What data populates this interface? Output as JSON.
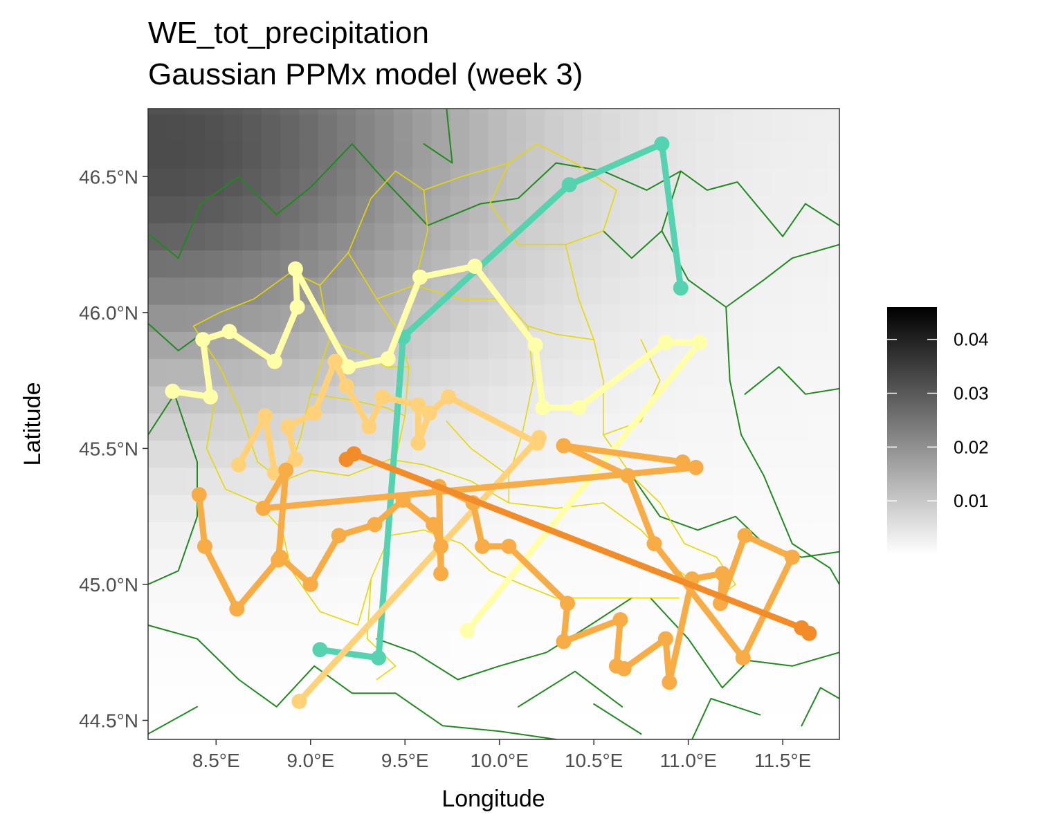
{
  "title": {
    "line1": "WE_tot_precipitation",
    "line2": "Gaussian PPMx model (week 3)"
  },
  "chart_data": {
    "type": "map",
    "xlabel": "Longitude",
    "ylabel": "Latitude",
    "xlim": [
      8.14,
      11.8
    ],
    "ylim": [
      44.43,
      46.75
    ],
    "x_ticks": [
      {
        "value": 8.5,
        "label": "8.5°E"
      },
      {
        "value": 9.0,
        "label": "9.0°E"
      },
      {
        "value": 9.5,
        "label": "9.5°E"
      },
      {
        "value": 10.0,
        "label": "10.0°E"
      },
      {
        "value": 10.5,
        "label": "10.5°E"
      },
      {
        "value": 11.0,
        "label": "11.0°E"
      },
      {
        "value": 11.5,
        "label": "11.5°E"
      }
    ],
    "y_ticks": [
      {
        "value": 44.5,
        "label": "44.5°N"
      },
      {
        "value": 45.0,
        "label": "45.0°N"
      },
      {
        "value": 45.5,
        "label": "45.5°N"
      },
      {
        "value": 46.0,
        "label": "46.0°N"
      },
      {
        "value": 46.5,
        "label": "46.5°N"
      }
    ],
    "grid": false,
    "legend": {
      "placement": "right",
      "gradient": [
        "#ffffff",
        "#000000"
      ],
      "min": 0.0,
      "max": 0.046,
      "ticks": [
        {
          "value": 0.01,
          "label": "0.01"
        },
        {
          "value": 0.02,
          "label": "0.02"
        },
        {
          "value": 0.03,
          "label": "0.03"
        },
        {
          "value": 0.04,
          "label": "0.04"
        }
      ]
    },
    "background_field": {
      "description_colors": [
        "#ffffff",
        "#000000"
      ],
      "peak": {
        "lon": 8.2,
        "lat": 46.6,
        "value": 0.03
      }
    },
    "boundary_colors": {
      "regions": "#1e8a1e",
      "provinces": "#e6d800"
    },
    "clusters": [
      {
        "color": "#55d3b0",
        "stations": [
          {
            "lon": 9.05,
            "lat": 44.76
          },
          {
            "lon": 9.36,
            "lat": 44.73
          },
          {
            "lon": 9.49,
            "lat": 45.91
          },
          {
            "lon": 10.37,
            "lat": 46.47
          },
          {
            "lon": 10.86,
            "lat": 46.62
          },
          {
            "lon": 10.96,
            "lat": 46.09
          }
        ]
      },
      {
        "color": "#ffffaa",
        "stations": [
          {
            "lon": 8.27,
            "lat": 45.71
          },
          {
            "lon": 8.47,
            "lat": 45.69
          },
          {
            "lon": 8.43,
            "lat": 45.9
          },
          {
            "lon": 8.57,
            "lat": 45.93
          },
          {
            "lon": 8.81,
            "lat": 45.82
          },
          {
            "lon": 8.93,
            "lat": 46.02
          },
          {
            "lon": 8.92,
            "lat": 46.16
          },
          {
            "lon": 9.2,
            "lat": 45.8
          },
          {
            "lon": 9.41,
            "lat": 45.83
          },
          {
            "lon": 9.58,
            "lat": 46.13
          },
          {
            "lon": 9.87,
            "lat": 46.17
          },
          {
            "lon": 10.19,
            "lat": 45.88
          },
          {
            "lon": 10.23,
            "lat": 45.65
          },
          {
            "lon": 10.42,
            "lat": 45.65
          },
          {
            "lon": 10.88,
            "lat": 45.89
          },
          {
            "lon": 11.06,
            "lat": 45.89
          },
          {
            "lon": 9.83,
            "lat": 44.83
          }
        ]
      },
      {
        "color": "#ffd27a",
        "stations": [
          {
            "lon": 8.62,
            "lat": 45.44
          },
          {
            "lon": 8.76,
            "lat": 45.62
          },
          {
            "lon": 8.81,
            "lat": 45.41
          },
          {
            "lon": 8.92,
            "lat": 45.46
          },
          {
            "lon": 8.88,
            "lat": 45.58
          },
          {
            "lon": 9.02,
            "lat": 45.63
          },
          {
            "lon": 9.13,
            "lat": 45.82
          },
          {
            "lon": 9.19,
            "lat": 45.73
          },
          {
            "lon": 9.31,
            "lat": 45.58
          },
          {
            "lon": 9.38,
            "lat": 45.69
          },
          {
            "lon": 9.57,
            "lat": 45.66
          },
          {
            "lon": 9.57,
            "lat": 45.52
          },
          {
            "lon": 9.63,
            "lat": 45.63
          },
          {
            "lon": 9.73,
            "lat": 45.69
          },
          {
            "lon": 10.2,
            "lat": 45.52
          },
          {
            "lon": 10.21,
            "lat": 45.54
          },
          {
            "lon": 8.94,
            "lat": 44.57
          }
        ]
      },
      {
        "color": "#f7ac45",
        "stations": [
          {
            "lon": 8.41,
            "lat": 45.33
          },
          {
            "lon": 8.44,
            "lat": 45.14
          },
          {
            "lon": 8.61,
            "lat": 44.91
          },
          {
            "lon": 8.84,
            "lat": 45.1
          },
          {
            "lon": 9.0,
            "lat": 45.0
          },
          {
            "lon": 9.15,
            "lat": 45.18
          },
          {
            "lon": 9.34,
            "lat": 45.22
          },
          {
            "lon": 9.49,
            "lat": 45.31
          },
          {
            "lon": 9.65,
            "lat": 45.22
          },
          {
            "lon": 9.69,
            "lat": 45.14
          },
          {
            "lon": 9.69,
            "lat": 45.04
          },
          {
            "lon": 9.68,
            "lat": 45.36
          },
          {
            "lon": 9.86,
            "lat": 45.3
          },
          {
            "lon": 9.91,
            "lat": 45.14
          },
          {
            "lon": 10.05,
            "lat": 45.14
          },
          {
            "lon": 10.36,
            "lat": 44.93
          },
          {
            "lon": 10.34,
            "lat": 44.79
          },
          {
            "lon": 10.64,
            "lat": 44.87
          },
          {
            "lon": 10.62,
            "lat": 44.7
          },
          {
            "lon": 10.66,
            "lat": 44.69
          },
          {
            "lon": 10.88,
            "lat": 44.8
          },
          {
            "lon": 10.9,
            "lat": 44.64
          },
          {
            "lon": 11.02,
            "lat": 45.02
          },
          {
            "lon": 11.18,
            "lat": 45.04
          },
          {
            "lon": 11.17,
            "lat": 44.93
          },
          {
            "lon": 11.3,
            "lat": 45.18
          },
          {
            "lon": 11.55,
            "lat": 45.1
          },
          {
            "lon": 11.29,
            "lat": 44.73
          },
          {
            "lon": 10.82,
            "lat": 45.15
          },
          {
            "lon": 10.68,
            "lat": 45.4
          },
          {
            "lon": 10.34,
            "lat": 45.51
          },
          {
            "lon": 10.97,
            "lat": 45.45
          },
          {
            "lon": 11.04,
            "lat": 45.43
          },
          {
            "lon": 8.75,
            "lat": 45.28
          },
          {
            "lon": 8.87,
            "lat": 45.42
          },
          {
            "lon": 8.83,
            "lat": 45.09
          }
        ]
      },
      {
        "color": "#f28c28",
        "stations": [
          {
            "lon": 9.19,
            "lat": 45.46
          },
          {
            "lon": 9.23,
            "lat": 45.48
          },
          {
            "lon": 11.6,
            "lat": 44.84
          },
          {
            "lon": 11.64,
            "lat": 44.82
          }
        ]
      }
    ]
  }
}
